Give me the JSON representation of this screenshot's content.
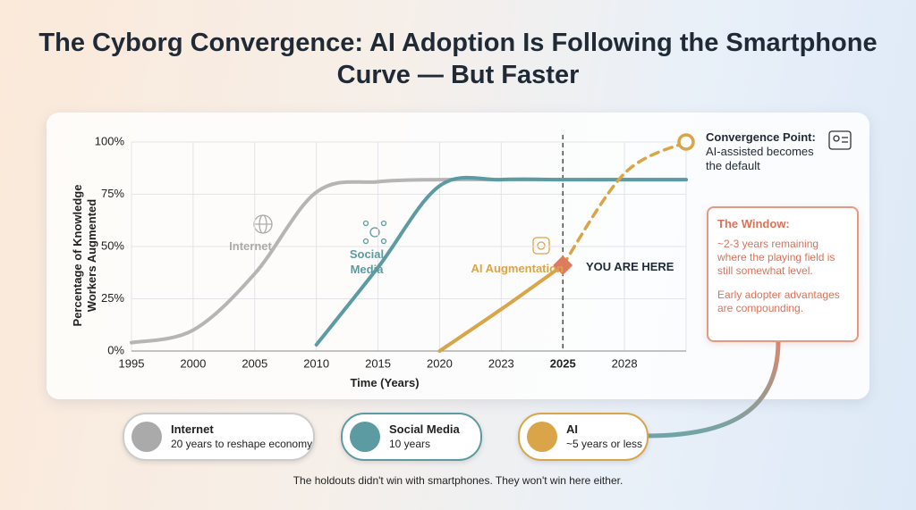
{
  "title": "The Cyborg Convergence: AI Adoption Is Following the Smartphone Curve — But Faster",
  "chart_data": {
    "type": "line",
    "y_label": "Percentage of Knowledge Workers Augmented",
    "x_label": "Time (Years)",
    "categories": [
      "1995",
      "2000",
      "2005",
      "2010",
      "2015",
      "2020",
      "2023",
      "2025",
      "2028",
      null
    ],
    "ylim": [
      0,
      100
    ],
    "yticks": [
      {
        "value": 0,
        "label": "0%"
      },
      {
        "value": 25,
        "label": "25%"
      },
      {
        "value": 50,
        "label": "50%"
      },
      {
        "value": 75,
        "label": "75%"
      },
      {
        "value": 100,
        "label": "100%"
      }
    ],
    "grid": true,
    "series": [
      {
        "name": "Internet",
        "color": "#b5b5b5",
        "values": [
          4,
          10,
          37,
          76,
          81,
          82,
          82,
          82,
          82,
          82
        ]
      },
      {
        "name": "Social Media",
        "color": "#5b9ba1",
        "values": [
          null,
          null,
          null,
          3,
          40,
          79,
          82,
          82,
          82,
          82
        ]
      },
      {
        "name": "AI Augmentation",
        "color": "#d9a548",
        "values": [
          null,
          null,
          null,
          null,
          null,
          0,
          20,
          41,
          null,
          null
        ]
      },
      {
        "color": "#d9a548",
        "dashed": true,
        "values": [
          null,
          null,
          null,
          null,
          null,
          null,
          null,
          41,
          85,
          100
        ]
      }
    ]
  },
  "you_are_here": "YOU ARE HERE",
  "convergence": {
    "title": "Convergence Point:",
    "text": "AI-assisted becomes the default"
  },
  "window": {
    "title": "The Window:",
    "lines": [
      "~2-3 years remaining where the playing field is still somewhat level.",
      "Early adopter advantages are compounding."
    ]
  },
  "timeline": [
    {
      "name": "Internet",
      "text": "20 years to reshape economy"
    },
    {
      "name": "Social Media",
      "text": "10 years"
    },
    {
      "name": "AI",
      "text": "~5 years or less"
    }
  ],
  "footer": "The holdouts didn't win with smartphones. They won't win here either."
}
